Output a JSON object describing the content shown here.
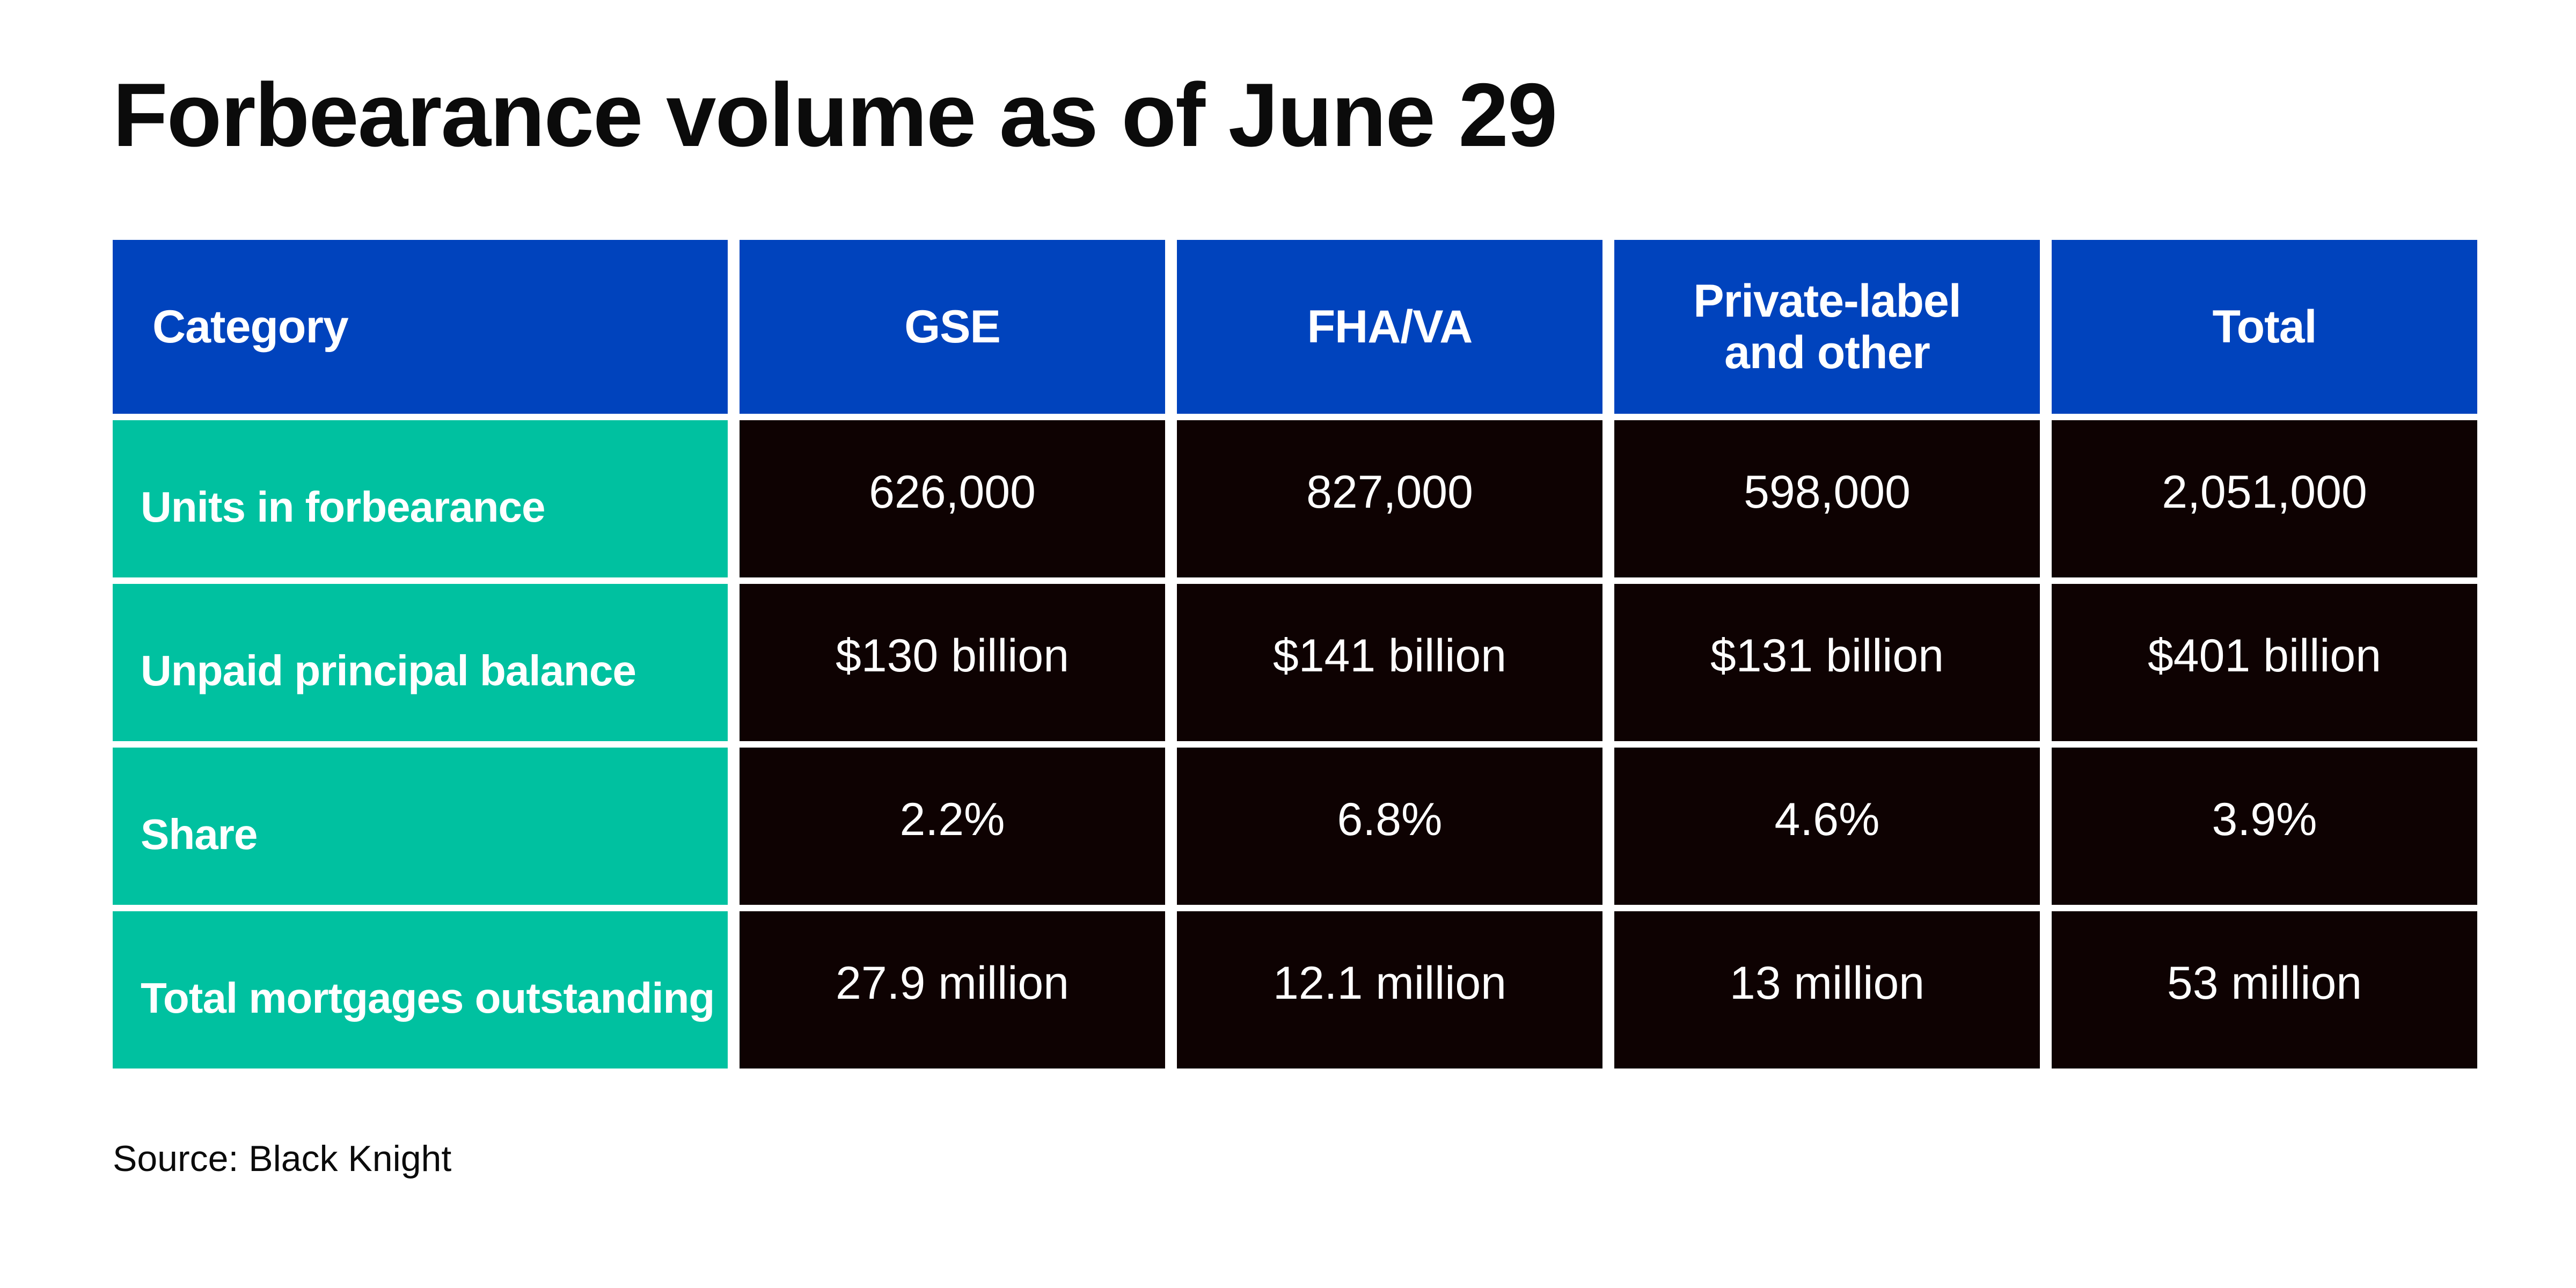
{
  "title": "Forbearance volume as of June 29",
  "source": "Source: Black Knight",
  "colors": {
    "header_bg": "#0043bd",
    "row_label_bg": "#00c1a0",
    "value_bg": "#0e0202",
    "text_light": "#ffffff",
    "text_dark": "#0b0b0b"
  },
  "chart_data": {
    "type": "table",
    "title": "Forbearance volume as of June 29",
    "columns": [
      "Category",
      "GSE",
      "FHA/VA",
      "Private-label\nand other",
      "Total"
    ],
    "rows": [
      {
        "label": "Units in forbearance",
        "values": [
          "626,000",
          "827,000",
          "598,000",
          "2,051,000"
        ]
      },
      {
        "label": "Unpaid principal balance",
        "values": [
          "$130 billion",
          "$141 billion",
          "$131 billion",
          "$401 billion"
        ]
      },
      {
        "label": "Share",
        "values": [
          "2.2%",
          "6.8%",
          "4.6%",
          "3.9%"
        ]
      },
      {
        "label": "Total mortgages outstanding",
        "values": [
          "27.9 million",
          "12.1 million",
          "13 million",
          "53 million"
        ]
      }
    ]
  }
}
